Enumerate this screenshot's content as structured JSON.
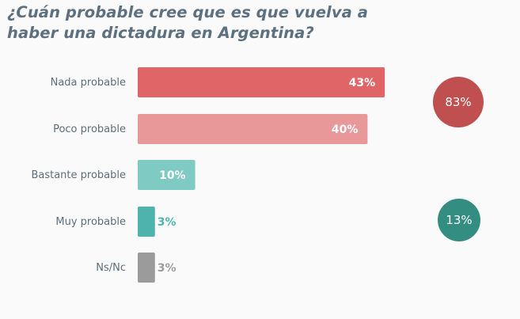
{
  "chart_data": {
    "type": "bar",
    "orientation": "horizontal",
    "title": "¿Cuán probable cree que es que vuelva a haber una dictadura en Argentina?",
    "xlabel": "",
    "ylabel": "",
    "unit": "%",
    "xlim": [
      0,
      43
    ],
    "grid": false,
    "categories": [
      "Nada probable",
      "Poco probable",
      "Bastante probable",
      "Muy probable",
      "Ns/Nc"
    ],
    "values": [
      43,
      40,
      10,
      3,
      3
    ],
    "value_labels": [
      "43%",
      "40%",
      "10%",
      "3%",
      "3%"
    ],
    "colors": [
      "#e06566",
      "#e99899",
      "#7fcbc4",
      "#4db3ac",
      "#9b9b9b"
    ],
    "summaries": [
      {
        "label": "83%",
        "value": 83,
        "groups": [
          "Nada probable",
          "Poco probable"
        ],
        "color": "#c0504f"
      },
      {
        "label": "13%",
        "value": 13,
        "groups": [
          "Bastante probable",
          "Muy probable"
        ],
        "color": "#338d80"
      }
    ]
  }
}
